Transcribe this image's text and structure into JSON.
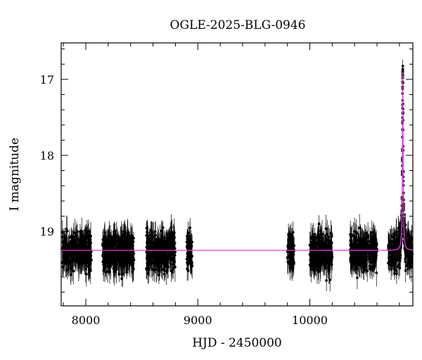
{
  "chart_data": {
    "type": "scatter",
    "title": "OGLE-2025-BLG-0946",
    "xlabel": "HJD - 2450000",
    "ylabel": "I magnitude",
    "xlim": [
      7780,
      10920
    ],
    "ylim": [
      19.98,
      16.52
    ],
    "y_inverted": true,
    "grid": false,
    "x_ticks": [
      8000,
      9000,
      10000
    ],
    "y_ticks": [
      17,
      18,
      19
    ],
    "x_tick_labels": [
      "8000",
      "9000",
      "10000"
    ],
    "y_tick_labels": [
      "17",
      "18",
      "19"
    ],
    "baseline_mag": 19.25,
    "observation_seasons": [
      {
        "start": 7790,
        "end": 8050,
        "mean_mag": 19.27,
        "scatter": 0.2
      },
      {
        "start": 8150,
        "end": 8430,
        "mean_mag": 19.27,
        "scatter": 0.2
      },
      {
        "start": 8540,
        "end": 8800,
        "mean_mag": 19.27,
        "scatter": 0.22
      },
      {
        "start": 8900,
        "end": 8950,
        "mean_mag": 19.28,
        "scatter": 0.18
      },
      {
        "start": 9800,
        "end": 9860,
        "mean_mag": 19.28,
        "scatter": 0.2
      },
      {
        "start": 10000,
        "end": 10200,
        "mean_mag": 19.28,
        "scatter": 0.2
      },
      {
        "start": 10360,
        "end": 10600,
        "mean_mag": 19.27,
        "scatter": 0.2
      },
      {
        "start": 10700,
        "end": 10915,
        "mean_mag": 19.27,
        "scatter": 0.2
      }
    ],
    "model": {
      "name": "",
      "color": "#e040e0",
      "t0": 10830,
      "peak_mag": 16.9,
      "baseline_mag": 19.25,
      "width_days": 4
    },
    "data_color": "#000000"
  }
}
